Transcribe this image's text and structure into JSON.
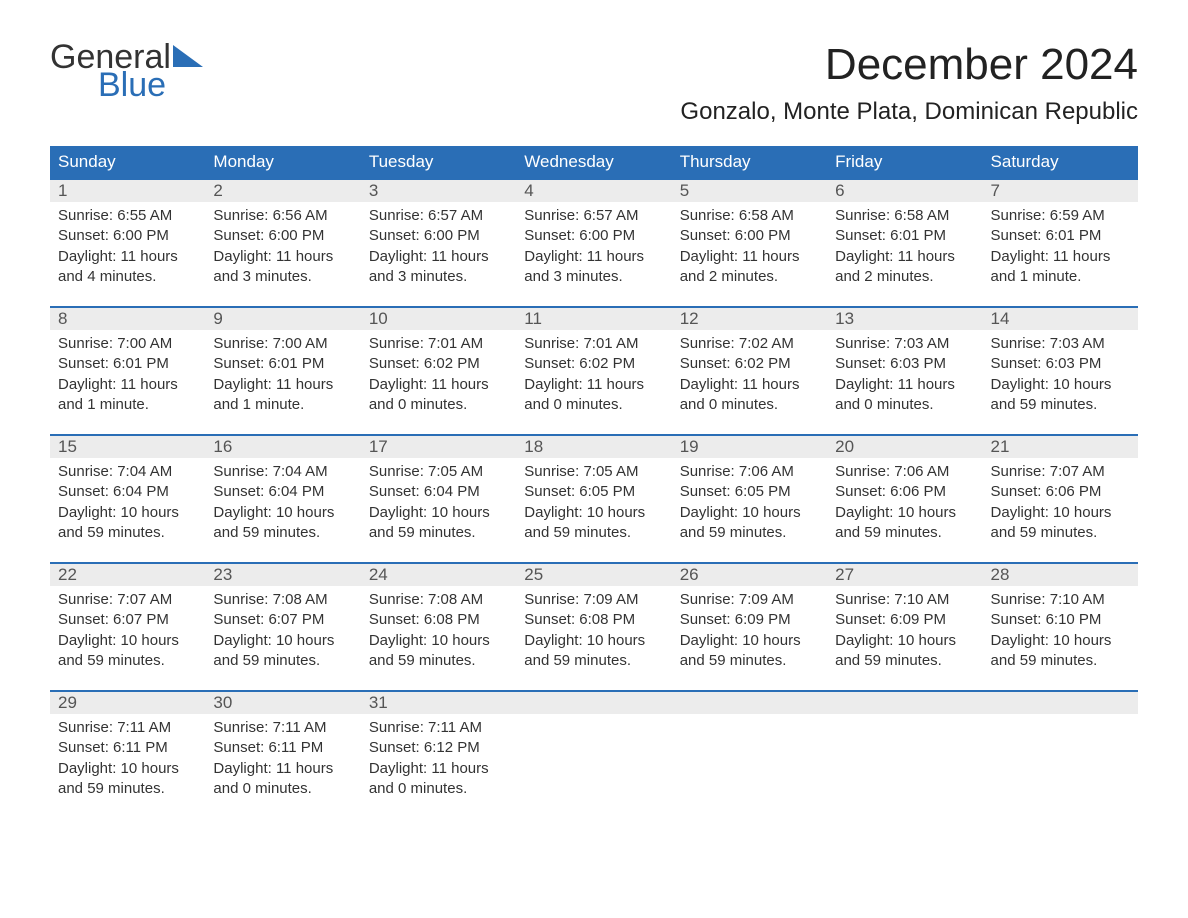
{
  "logo": {
    "word1": "General",
    "word2": "Blue"
  },
  "title": "December 2024",
  "location": "Gonzalo, Monte Plata, Dominican Republic",
  "colors": {
    "header_bg": "#2a6eb6",
    "header_text": "#ffffff",
    "daynum_bg": "#ececec",
    "week_divider": "#2a6eb6",
    "body_text": "#333333",
    "logo_blue": "#2a6eb6"
  },
  "typography": {
    "title_fontsize": 44,
    "location_fontsize": 24,
    "header_fontsize": 17,
    "daynum_fontsize": 17,
    "cell_fontsize": 15
  },
  "day_names": [
    "Sunday",
    "Monday",
    "Tuesday",
    "Wednesday",
    "Thursday",
    "Friday",
    "Saturday"
  ],
  "weeks": [
    [
      {
        "n": "1",
        "sunrise": "Sunrise: 6:55 AM",
        "sunset": "Sunset: 6:00 PM",
        "daylight": "Daylight: 11 hours and 4 minutes."
      },
      {
        "n": "2",
        "sunrise": "Sunrise: 6:56 AM",
        "sunset": "Sunset: 6:00 PM",
        "daylight": "Daylight: 11 hours and 3 minutes."
      },
      {
        "n": "3",
        "sunrise": "Sunrise: 6:57 AM",
        "sunset": "Sunset: 6:00 PM",
        "daylight": "Daylight: 11 hours and 3 minutes."
      },
      {
        "n": "4",
        "sunrise": "Sunrise: 6:57 AM",
        "sunset": "Sunset: 6:00 PM",
        "daylight": "Daylight: 11 hours and 3 minutes."
      },
      {
        "n": "5",
        "sunrise": "Sunrise: 6:58 AM",
        "sunset": "Sunset: 6:00 PM",
        "daylight": "Daylight: 11 hours and 2 minutes."
      },
      {
        "n": "6",
        "sunrise": "Sunrise: 6:58 AM",
        "sunset": "Sunset: 6:01 PM",
        "daylight": "Daylight: 11 hours and 2 minutes."
      },
      {
        "n": "7",
        "sunrise": "Sunrise: 6:59 AM",
        "sunset": "Sunset: 6:01 PM",
        "daylight": "Daylight: 11 hours and 1 minute."
      }
    ],
    [
      {
        "n": "8",
        "sunrise": "Sunrise: 7:00 AM",
        "sunset": "Sunset: 6:01 PM",
        "daylight": "Daylight: 11 hours and 1 minute."
      },
      {
        "n": "9",
        "sunrise": "Sunrise: 7:00 AM",
        "sunset": "Sunset: 6:01 PM",
        "daylight": "Daylight: 11 hours and 1 minute."
      },
      {
        "n": "10",
        "sunrise": "Sunrise: 7:01 AM",
        "sunset": "Sunset: 6:02 PM",
        "daylight": "Daylight: 11 hours and 0 minutes."
      },
      {
        "n": "11",
        "sunrise": "Sunrise: 7:01 AM",
        "sunset": "Sunset: 6:02 PM",
        "daylight": "Daylight: 11 hours and 0 minutes."
      },
      {
        "n": "12",
        "sunrise": "Sunrise: 7:02 AM",
        "sunset": "Sunset: 6:02 PM",
        "daylight": "Daylight: 11 hours and 0 minutes."
      },
      {
        "n": "13",
        "sunrise": "Sunrise: 7:03 AM",
        "sunset": "Sunset: 6:03 PM",
        "daylight": "Daylight: 11 hours and 0 minutes."
      },
      {
        "n": "14",
        "sunrise": "Sunrise: 7:03 AM",
        "sunset": "Sunset: 6:03 PM",
        "daylight": "Daylight: 10 hours and 59 minutes."
      }
    ],
    [
      {
        "n": "15",
        "sunrise": "Sunrise: 7:04 AM",
        "sunset": "Sunset: 6:04 PM",
        "daylight": "Daylight: 10 hours and 59 minutes."
      },
      {
        "n": "16",
        "sunrise": "Sunrise: 7:04 AM",
        "sunset": "Sunset: 6:04 PM",
        "daylight": "Daylight: 10 hours and 59 minutes."
      },
      {
        "n": "17",
        "sunrise": "Sunrise: 7:05 AM",
        "sunset": "Sunset: 6:04 PM",
        "daylight": "Daylight: 10 hours and 59 minutes."
      },
      {
        "n": "18",
        "sunrise": "Sunrise: 7:05 AM",
        "sunset": "Sunset: 6:05 PM",
        "daylight": "Daylight: 10 hours and 59 minutes."
      },
      {
        "n": "19",
        "sunrise": "Sunrise: 7:06 AM",
        "sunset": "Sunset: 6:05 PM",
        "daylight": "Daylight: 10 hours and 59 minutes."
      },
      {
        "n": "20",
        "sunrise": "Sunrise: 7:06 AM",
        "sunset": "Sunset: 6:06 PM",
        "daylight": "Daylight: 10 hours and 59 minutes."
      },
      {
        "n": "21",
        "sunrise": "Sunrise: 7:07 AM",
        "sunset": "Sunset: 6:06 PM",
        "daylight": "Daylight: 10 hours and 59 minutes."
      }
    ],
    [
      {
        "n": "22",
        "sunrise": "Sunrise: 7:07 AM",
        "sunset": "Sunset: 6:07 PM",
        "daylight": "Daylight: 10 hours and 59 minutes."
      },
      {
        "n": "23",
        "sunrise": "Sunrise: 7:08 AM",
        "sunset": "Sunset: 6:07 PM",
        "daylight": "Daylight: 10 hours and 59 minutes."
      },
      {
        "n": "24",
        "sunrise": "Sunrise: 7:08 AM",
        "sunset": "Sunset: 6:08 PM",
        "daylight": "Daylight: 10 hours and 59 minutes."
      },
      {
        "n": "25",
        "sunrise": "Sunrise: 7:09 AM",
        "sunset": "Sunset: 6:08 PM",
        "daylight": "Daylight: 10 hours and 59 minutes."
      },
      {
        "n": "26",
        "sunrise": "Sunrise: 7:09 AM",
        "sunset": "Sunset: 6:09 PM",
        "daylight": "Daylight: 10 hours and 59 minutes."
      },
      {
        "n": "27",
        "sunrise": "Sunrise: 7:10 AM",
        "sunset": "Sunset: 6:09 PM",
        "daylight": "Daylight: 10 hours and 59 minutes."
      },
      {
        "n": "28",
        "sunrise": "Sunrise: 7:10 AM",
        "sunset": "Sunset: 6:10 PM",
        "daylight": "Daylight: 10 hours and 59 minutes."
      }
    ],
    [
      {
        "n": "29",
        "sunrise": "Sunrise: 7:11 AM",
        "sunset": "Sunset: 6:11 PM",
        "daylight": "Daylight: 10 hours and 59 minutes."
      },
      {
        "n": "30",
        "sunrise": "Sunrise: 7:11 AM",
        "sunset": "Sunset: 6:11 PM",
        "daylight": "Daylight: 11 hours and 0 minutes."
      },
      {
        "n": "31",
        "sunrise": "Sunrise: 7:11 AM",
        "sunset": "Sunset: 6:12 PM",
        "daylight": "Daylight: 11 hours and 0 minutes."
      },
      null,
      null,
      null,
      null
    ]
  ]
}
